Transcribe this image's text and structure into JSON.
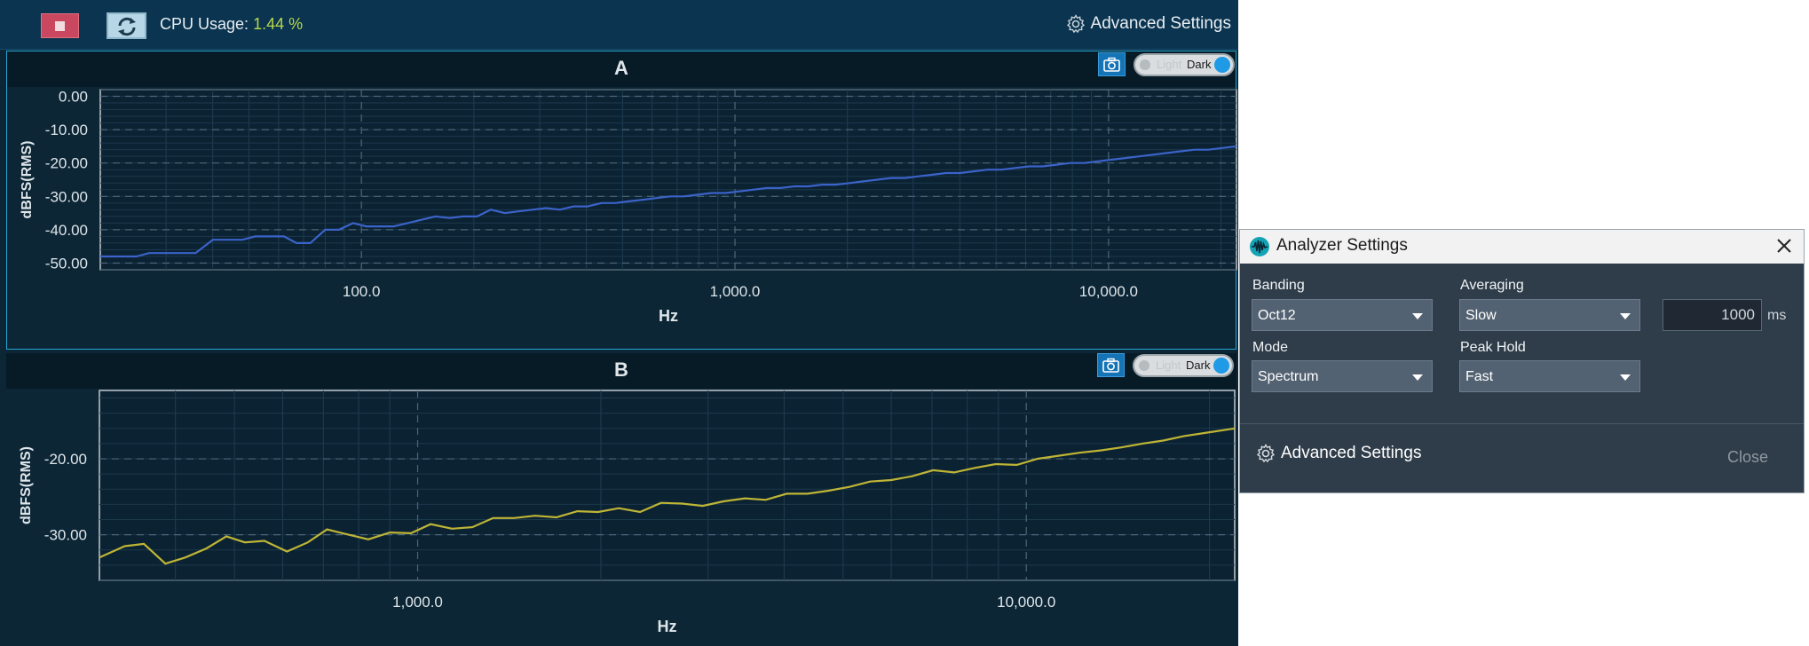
{
  "toolbar": {
    "cpu_label": "CPU Usage:",
    "cpu_value": "1.44",
    "cpu_unit": "%",
    "advanced_settings": "Advanced Settings",
    "stop_icon": "stop-icon",
    "refresh_icon": "refresh-icon",
    "gear_icon": "gear-icon"
  },
  "colors": {
    "background": "#0c2636",
    "plot_background": "#0b2233",
    "series_a": "#3b63c9",
    "series_b": "#bfb535",
    "accent": "#1f9ae6"
  },
  "theme_toggle": {
    "light_label": "Light",
    "dark_label": "Dark",
    "selected": "Dark"
  },
  "panels": [
    {
      "title": "A",
      "y_label": "dBFS(RMS)",
      "x_label": "Hz",
      "camera_icon": "camera-icon"
    },
    {
      "title": "B",
      "y_label": "dBFS(RMS)",
      "x_label": "Hz",
      "camera_icon": "camera-icon"
    }
  ],
  "chart_data": [
    {
      "type": "line",
      "title": "A",
      "xlabel": "Hz",
      "ylabel": "dBFS(RMS)",
      "x_scale": "log",
      "xlim": [
        20,
        22000
      ],
      "ylim": [
        -52,
        2
      ],
      "x_ticks": [
        {
          "value": 100,
          "label": "100.0"
        },
        {
          "value": 1000,
          "label": "1,000.0"
        },
        {
          "value": 10000,
          "label": "10,000.0"
        }
      ],
      "y_ticks": [
        {
          "value": 0,
          "label": "0.00"
        },
        {
          "value": -10,
          "label": "-10.00"
        },
        {
          "value": -20,
          "label": "-20.00"
        },
        {
          "value": -30,
          "label": "-30.00"
        },
        {
          "value": -40,
          "label": "-40.00"
        },
        {
          "value": -50,
          "label": "-50.00"
        }
      ],
      "grid": true,
      "series": [
        {
          "color": "#3b63c9",
          "x": [
            20,
            25,
            27,
            30,
            33,
            36,
            40,
            44,
            48,
            52,
            57,
            62,
            67,
            73,
            80,
            87,
            95,
            103,
            112,
            122,
            133,
            145,
            158,
            172,
            187,
            204,
            222,
            242,
            263,
            287,
            312,
            340,
            370,
            403,
            439,
            478,
            520,
            566,
            616,
            671,
            730,
            795,
            866,
            943,
            1026,
            1117,
            1216,
            1324,
            1442,
            1570,
            1709,
            1861,
            2026,
            2206,
            2402,
            2615,
            2847,
            3100,
            3375,
            3675,
            4001,
            4356,
            4743,
            5164,
            5622,
            6121,
            6665,
            7256,
            7901,
            8602,
            9366,
            10197,
            11103,
            12088,
            13162,
            14330,
            15602,
            16987,
            18495,
            20137,
            22000
          ],
          "y": [
            -48,
            -48,
            -47,
            -47,
            -47,
            -47,
            -43,
            -43,
            -43,
            -42,
            -42,
            -42,
            -44,
            -44,
            -40,
            -40,
            -38,
            -39,
            -39,
            -39,
            -38,
            -37,
            -36,
            -36.5,
            -36,
            -36,
            -34,
            -35,
            -34.5,
            -34,
            -33.5,
            -34,
            -33,
            -33,
            -32,
            -32,
            -31.5,
            -31,
            -30.5,
            -30,
            -30,
            -29.5,
            -29,
            -29,
            -28.5,
            -28,
            -27.5,
            -27.5,
            -27,
            -27,
            -26.5,
            -26.5,
            -26,
            -25.5,
            -25,
            -24.5,
            -24.5,
            -24,
            -23.5,
            -23,
            -23,
            -22.5,
            -22,
            -22,
            -21.5,
            -21,
            -21,
            -20.5,
            -20,
            -20,
            -19.5,
            -19,
            -18.5,
            -18,
            -17.5,
            -17,
            -16.5,
            -16,
            -16,
            -15.5,
            -15
          ]
        }
      ]
    },
    {
      "type": "line",
      "title": "B",
      "xlabel": "Hz",
      "ylabel": "dBFS(RMS)",
      "x_scale": "log",
      "xlim": [
        300,
        22000
      ],
      "ylim": [
        -36,
        -11
      ],
      "x_ticks": [
        {
          "value": 1000,
          "label": "1,000.0"
        },
        {
          "value": 10000,
          "label": "10,000.0"
        }
      ],
      "y_ticks": [
        {
          "value": -20,
          "label": "-20.00"
        },
        {
          "value": -30,
          "label": "-30.00"
        }
      ],
      "grid": true,
      "series": [
        {
          "color": "#bfb535",
          "x": [
            300,
            330,
            355,
            385,
            415,
            450,
            485,
            520,
            560,
            610,
            660,
            710,
            770,
            830,
            900,
            975,
            1050,
            1140,
            1230,
            1330,
            1440,
            1560,
            1690,
            1830,
            1980,
            2140,
            2320,
            2510,
            2720,
            2940,
            3180,
            3450,
            3730,
            4040,
            4370,
            4730,
            5120,
            5540,
            6000,
            6490,
            7030,
            7610,
            8230,
            8910,
            9650,
            10440,
            11300,
            12230,
            13240,
            14330,
            15510,
            16790,
            18170,
            19670,
            22000
          ],
          "y": [
            -33,
            -31.5,
            -31.2,
            -33.8,
            -33,
            -31.8,
            -30.2,
            -31,
            -30.8,
            -32.2,
            -31,
            -29.3,
            -30,
            -30.6,
            -29.7,
            -29.8,
            -28.6,
            -29.2,
            -29,
            -27.8,
            -27.8,
            -27.5,
            -27.7,
            -26.9,
            -27,
            -26.5,
            -27,
            -25.8,
            -25.9,
            -26.2,
            -25.6,
            -25.2,
            -25.4,
            -24.6,
            -24.6,
            -24.2,
            -23.7,
            -23,
            -22.8,
            -22.3,
            -21.5,
            -21.8,
            -21.2,
            -20.7,
            -20.8,
            -20,
            -19.6,
            -19.2,
            -18.9,
            -18.5,
            -18,
            -17.6,
            -17,
            -16.6,
            -16
          ]
        }
      ]
    }
  ],
  "dialog": {
    "title": "Analyzer Settings",
    "icon": "waveform-icon",
    "close_icon": "close-icon",
    "banding_label": "Banding",
    "banding_value": "Oct12",
    "averaging_label": "Averaging",
    "averaging_value": "Slow",
    "averaging_ms_value": "1000",
    "averaging_ms_unit": "ms",
    "mode_label": "Mode",
    "mode_value": "Spectrum",
    "peak_hold_label": "Peak Hold",
    "peak_hold_value": "Fast",
    "advanced_settings": "Advanced Settings",
    "close_button": "Close"
  }
}
